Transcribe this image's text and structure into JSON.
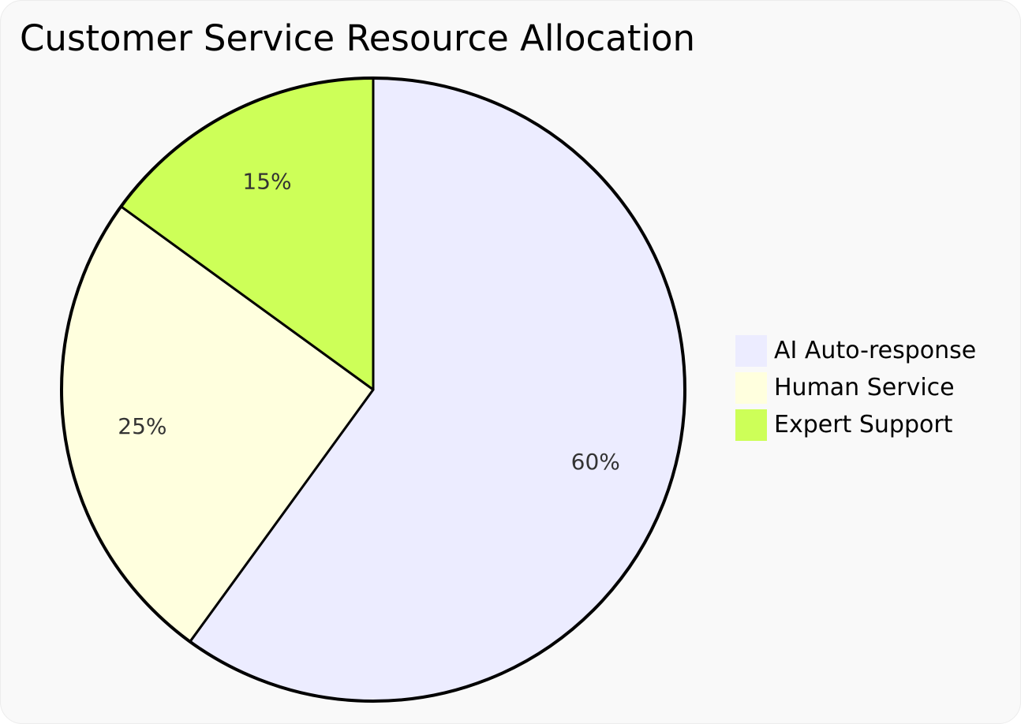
{
  "chart_data": {
    "type": "pie",
    "title": "Customer Service Resource Allocation",
    "slices": [
      {
        "label": "AI Auto-response",
        "value": 60,
        "display": "60%",
        "color": "#ECECFF"
      },
      {
        "label": "Human Service",
        "value": 25,
        "display": "25%",
        "color": "#FFFFDE"
      },
      {
        "label": "Expert Support",
        "value": 15,
        "display": "15%",
        "color": "#CDFF58"
      }
    ],
    "legend_placement": "right",
    "stroke_color": "#000000"
  }
}
